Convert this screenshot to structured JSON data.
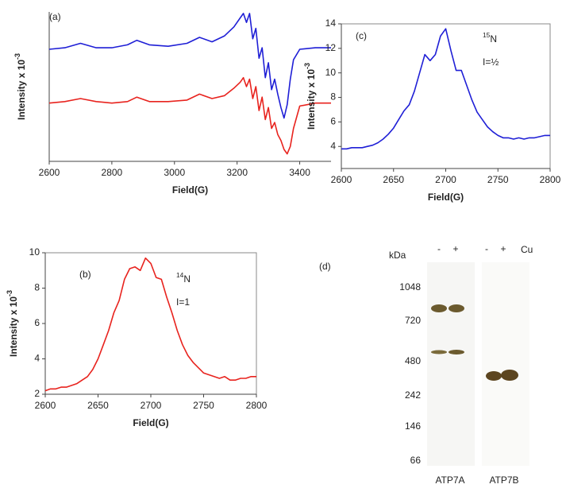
{
  "chart_data": [
    {
      "type": "line",
      "panel": "(a)",
      "xlabel": "Field(G)",
      "ylabel": {
        "text": "Intensity x 10",
        "superscript": "-3"
      },
      "x": [
        2600,
        2650,
        2700,
        2750,
        2800,
        2850,
        2880,
        2920,
        2980,
        3040,
        3080,
        3120,
        3160,
        3190,
        3210,
        3220,
        3230,
        3240,
        3250,
        3260,
        3270,
        3280,
        3290,
        3300,
        3310,
        3320,
        3330,
        3340,
        3350,
        3360,
        3370,
        3380,
        3400,
        3450,
        3500
      ],
      "series": [
        {
          "color": "#1f1fd6",
          "values": [
            7.5,
            7.6,
            7.9,
            7.6,
            7.6,
            7.8,
            8.1,
            7.8,
            7.7,
            7.9,
            8.3,
            8.0,
            8.4,
            9.0,
            9.6,
            9.9,
            9.3,
            9.9,
            8.2,
            8.9,
            6.9,
            7.6,
            5.6,
            6.6,
            4.8,
            5.5,
            4.5,
            3.6,
            2.9,
            3.8,
            5.5,
            6.8,
            7.5,
            7.6,
            7.6
          ]
        },
        {
          "color": "#e8231e",
          "values": [
            3.9,
            4.0,
            4.2,
            4.0,
            3.9,
            4.0,
            4.3,
            4.0,
            4.0,
            4.1,
            4.5,
            4.2,
            4.4,
            4.9,
            5.3,
            5.6,
            5.0,
            5.5,
            4.2,
            5.0,
            3.4,
            4.3,
            2.8,
            3.6,
            2.2,
            2.6,
            1.8,
            1.4,
            0.8,
            0.5,
            1.0,
            2.2,
            3.7,
            3.9,
            3.9
          ]
        }
      ],
      "xlim": [
        2600,
        3500
      ],
      "xticks": [
        2600,
        2800,
        3000,
        3200,
        3400
      ],
      "ylim": [
        0,
        10
      ]
    },
    {
      "type": "line",
      "panel": "(b)",
      "xlabel": "Field(G)",
      "ylabel": {
        "text": "Intensity x 10",
        "superscript": "-3"
      },
      "annotation": {
        "superscript": "14",
        "text": "N",
        "line2": "I=1",
        "color": "#e8231e"
      },
      "x": [
        2600,
        2605,
        2610,
        2615,
        2620,
        2625,
        2630,
        2635,
        2640,
        2645,
        2650,
        2655,
        2660,
        2665,
        2670,
        2675,
        2680,
        2685,
        2690,
        2695,
        2700,
        2705,
        2710,
        2715,
        2720,
        2725,
        2730,
        2735,
        2740,
        2745,
        2750,
        2755,
        2760,
        2765,
        2770,
        2775,
        2780,
        2785,
        2790,
        2795,
        2800
      ],
      "series": [
        {
          "color": "#e8231e",
          "values": [
            2.2,
            2.3,
            2.3,
            2.4,
            2.4,
            2.5,
            2.6,
            2.8,
            3.0,
            3.4,
            4.0,
            4.8,
            5.6,
            6.6,
            7.3,
            8.5,
            9.1,
            9.2,
            9.0,
            9.7,
            9.4,
            8.6,
            8.5,
            7.5,
            6.6,
            5.6,
            4.8,
            4.2,
            3.8,
            3.5,
            3.2,
            3.1,
            3.0,
            2.9,
            3.0,
            2.8,
            2.8,
            2.9,
            2.9,
            3.0,
            3.0
          ]
        }
      ],
      "xlim": [
        2600,
        2800
      ],
      "xticks": [
        2600,
        2650,
        2700,
        2750,
        2800
      ],
      "ylim": [
        2,
        10
      ],
      "yticks": [
        2,
        4,
        6,
        8,
        10
      ]
    },
    {
      "type": "line",
      "panel": "(c)",
      "xlabel": "Field(G)",
      "ylabel": {
        "text": "Intensity x 10",
        "superscript": "-3"
      },
      "annotation": {
        "superscript": "15",
        "text": "N",
        "line2": "I=½",
        "color": "#1f1fd6"
      },
      "x": [
        2600,
        2605,
        2610,
        2615,
        2620,
        2625,
        2630,
        2635,
        2640,
        2645,
        2650,
        2655,
        2660,
        2665,
        2670,
        2675,
        2680,
        2685,
        2690,
        2695,
        2700,
        2705,
        2710,
        2715,
        2720,
        2725,
        2730,
        2735,
        2740,
        2745,
        2750,
        2755,
        2760,
        2765,
        2770,
        2775,
        2780,
        2785,
        2790,
        2795,
        2800
      ],
      "series": [
        {
          "color": "#1f1fd6",
          "values": [
            3.8,
            3.8,
            3.9,
            3.9,
            3.9,
            4.0,
            4.1,
            4.3,
            4.6,
            5.0,
            5.5,
            6.2,
            6.9,
            7.4,
            8.5,
            10.0,
            11.5,
            11.0,
            11.5,
            13.0,
            13.6,
            11.8,
            10.2,
            10.2,
            9.0,
            7.8,
            6.8,
            6.2,
            5.6,
            5.2,
            4.9,
            4.7,
            4.7,
            4.6,
            4.7,
            4.6,
            4.7,
            4.7,
            4.8,
            4.9,
            4.9
          ]
        }
      ],
      "xlim": [
        2600,
        2800
      ],
      "xticks": [
        2600,
        2650,
        2700,
        2750,
        2800
      ],
      "ylim": [
        2.2,
        14
      ],
      "yticks": [
        4,
        6,
        8,
        10,
        12,
        14
      ]
    }
  ],
  "gel": {
    "panel": "(d)",
    "unit": "kDa",
    "markers": [
      "1048",
      "720",
      "480",
      "242",
      "146",
      "66"
    ],
    "lanes": [
      "-",
      "+",
      "-",
      "+"
    ],
    "treatment": "Cu",
    "blots": [
      "ATP7A",
      "ATP7B"
    ]
  }
}
